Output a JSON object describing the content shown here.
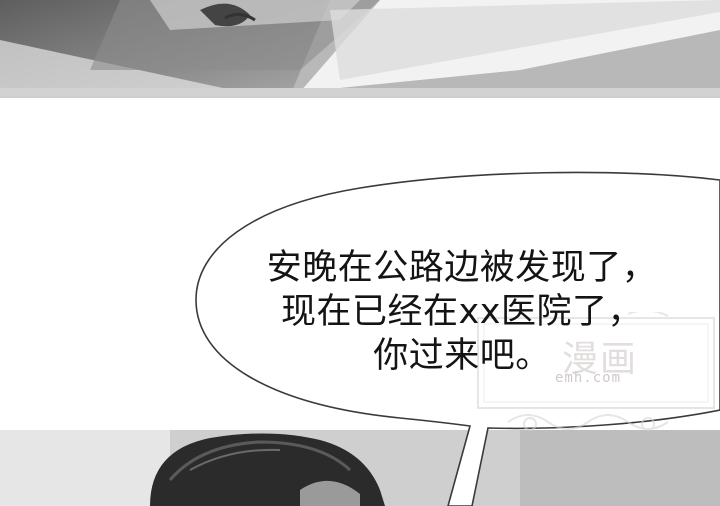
{
  "speech_bubble": {
    "lines": [
      "安晚在公路边被发现了，",
      "现在已经在xx医院了，",
      "你过来吧。"
    ]
  },
  "watermark": {
    "title": "漫画",
    "url": "emh.com"
  },
  "colors": {
    "background": "#ffffff",
    "bubble_fill": "#ffffff",
    "bubble_outline": "#3a3a3a",
    "text": "#141414",
    "watermark": "#d6d0d0"
  }
}
